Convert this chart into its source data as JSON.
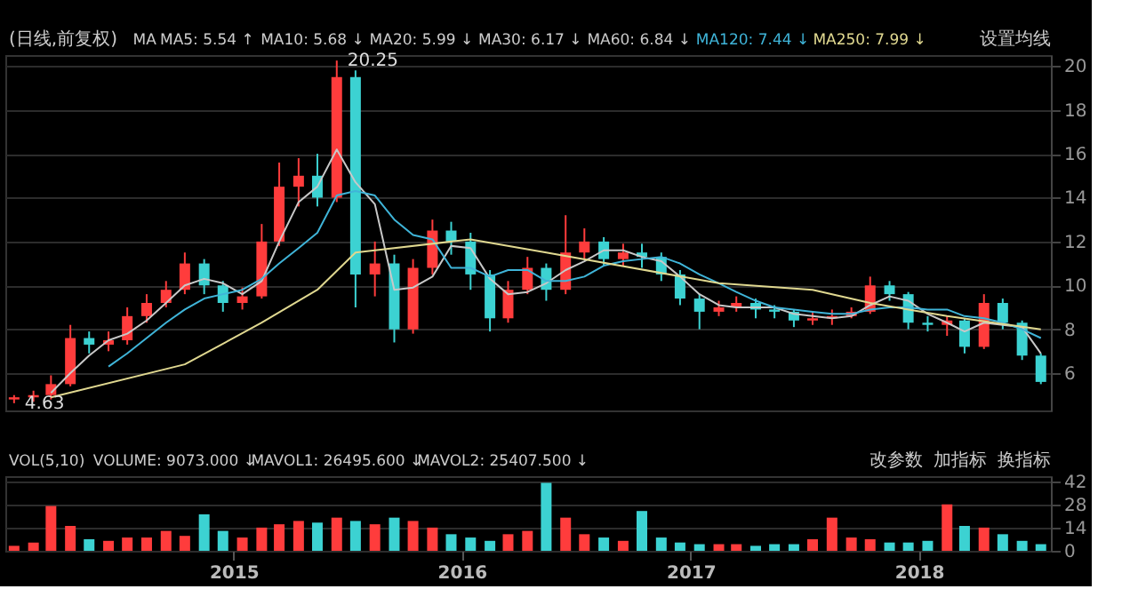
{
  "chart_data": [
    {
      "type": "candlestick",
      "x": [
        "2014-01-15",
        "2014-02-15",
        "2014-03-15",
        "2014-04-15",
        "2014-05-15",
        "2014-06-15",
        "2014-07-15",
        "2014-08-15",
        "2014-09-15",
        "2014-10-15",
        "2014-11-15",
        "2014-12-15",
        "2015-01-15",
        "2015-02-15",
        "2015-03-15",
        "2015-04-15",
        "2015-05-15",
        "2015-06-15",
        "2015-07-15",
        "2015-08-15",
        "2015-09-15",
        "2015-10-15",
        "2015-11-15",
        "2015-12-15",
        "2016-01-15",
        "2016-02-15",
        "2016-03-15",
        "2016-04-15",
        "2016-05-15",
        "2016-06-15",
        "2016-07-15",
        "2016-08-15",
        "2016-09-15",
        "2016-10-15",
        "2016-11-15",
        "2016-12-15",
        "2017-01-15",
        "2017-02-15",
        "2017-03-15",
        "2017-04-15",
        "2017-05-15",
        "2017-06-15",
        "2017-07-15",
        "2017-08-15",
        "2017-09-15",
        "2017-10-15",
        "2017-11-15",
        "2017-12-15",
        "2018-01-15",
        "2018-02-15",
        "2018-03-15",
        "2018-04-15",
        "2018-05-15",
        "2018-06-15",
        "2018-07-15"
      ],
      "ohlc": [
        [
          4.8,
          5.0,
          4.63,
          4.9
        ],
        [
          4.9,
          5.2,
          4.7,
          5.0
        ],
        [
          5.0,
          5.9,
          4.8,
          5.5
        ],
        [
          5.5,
          8.2,
          5.4,
          7.6
        ],
        [
          7.6,
          7.9,
          6.9,
          7.3
        ],
        [
          7.3,
          7.9,
          7.0,
          7.5
        ],
        [
          7.5,
          9.0,
          7.3,
          8.6
        ],
        [
          8.6,
          9.6,
          8.3,
          9.2
        ],
        [
          9.2,
          10.2,
          9.0,
          9.8
        ],
        [
          9.8,
          11.5,
          9.6,
          11.0
        ],
        [
          11.0,
          11.2,
          9.6,
          10.0
        ],
        [
          10.0,
          10.2,
          8.8,
          9.2
        ],
        [
          9.2,
          9.9,
          8.9,
          9.5
        ],
        [
          9.5,
          12.8,
          9.4,
          12.0
        ],
        [
          12.0,
          15.6,
          11.8,
          14.5
        ],
        [
          14.5,
          15.8,
          13.6,
          15.0
        ],
        [
          15.0,
          16.0,
          13.6,
          14.0
        ],
        [
          14.0,
          20.25,
          13.8,
          19.5
        ],
        [
          19.5,
          19.8,
          9.0,
          10.5
        ],
        [
          10.5,
          12.0,
          9.5,
          11.0
        ],
        [
          11.0,
          11.4,
          7.4,
          8.0
        ],
        [
          8.0,
          11.2,
          7.8,
          10.8
        ],
        [
          10.8,
          13.0,
          10.5,
          12.5
        ],
        [
          12.5,
          12.9,
          11.4,
          12.0
        ],
        [
          12.0,
          12.4,
          9.8,
          10.5
        ],
        [
          10.5,
          10.7,
          7.9,
          8.5
        ],
        [
          8.5,
          10.2,
          8.3,
          9.8
        ],
        [
          9.8,
          11.3,
          9.6,
          10.8
        ],
        [
          10.8,
          11.0,
          9.3,
          9.8
        ],
        [
          9.8,
          13.2,
          9.6,
          11.5
        ],
        [
          11.5,
          12.6,
          11.2,
          12.0
        ],
        [
          12.0,
          12.2,
          10.9,
          11.2
        ],
        [
          11.2,
          11.9,
          10.9,
          11.5
        ],
        [
          11.5,
          11.9,
          10.8,
          11.3
        ],
        [
          11.3,
          11.5,
          10.2,
          10.5
        ],
        [
          10.5,
          10.7,
          9.1,
          9.4
        ],
        [
          9.4,
          9.6,
          8.0,
          8.8
        ],
        [
          8.8,
          9.3,
          8.6,
          9.0
        ],
        [
          9.0,
          9.5,
          8.8,
          9.2
        ],
        [
          9.2,
          9.4,
          8.5,
          8.9
        ],
        [
          8.9,
          9.1,
          8.5,
          8.8
        ],
        [
          8.8,
          8.9,
          8.1,
          8.4
        ],
        [
          8.4,
          8.8,
          8.2,
          8.5
        ],
        [
          8.5,
          8.9,
          8.2,
          8.6
        ],
        [
          8.6,
          9.0,
          8.5,
          8.8
        ],
        [
          8.8,
          10.4,
          8.7,
          10.0
        ],
        [
          10.0,
          10.2,
          9.3,
          9.6
        ],
        [
          9.6,
          9.7,
          8.0,
          8.3
        ],
        [
          8.3,
          8.6,
          7.9,
          8.2
        ],
        [
          8.2,
          8.6,
          7.7,
          8.4
        ],
        [
          8.4,
          8.5,
          6.9,
          7.2
        ],
        [
          7.2,
          9.6,
          7.1,
          9.2
        ],
        [
          9.2,
          9.4,
          8.0,
          8.3
        ],
        [
          8.3,
          8.4,
          6.6,
          6.8
        ],
        [
          6.8,
          6.9,
          5.5,
          5.6
        ]
      ],
      "colors": [
        "#ff3c3c",
        "#ff3c3c",
        "#ff3c3c",
        "#ff3c3c",
        "#3cd2d2",
        "#ff3c3c",
        "#ff3c3c",
        "#ff3c3c",
        "#ff3c3c",
        "#ff3c3c",
        "#3cd2d2",
        "#3cd2d2",
        "#ff3c3c",
        "#ff3c3c",
        "#ff3c3c",
        "#ff3c3c",
        "#3cd2d2",
        "#ff3c3c",
        "#3cd2d2",
        "#ff3c3c",
        "#3cd2d2",
        "#ff3c3c",
        "#ff3c3c",
        "#3cd2d2",
        "#3cd2d2",
        "#3cd2d2",
        "#ff3c3c",
        "#ff3c3c",
        "#3cd2d2",
        "#ff3c3c",
        "#ff3c3c",
        "#3cd2d2",
        "#ff3c3c",
        "#3cd2d2",
        "#3cd2d2",
        "#3cd2d2",
        "#3cd2d2",
        "#ff3c3c",
        "#ff3c3c",
        "#3cd2d2",
        "#3cd2d2",
        "#3cd2d2",
        "#ff3c3c",
        "#ff3c3c",
        "#ff3c3c",
        "#ff3c3c",
        "#3cd2d2",
        "#3cd2d2",
        "#3cd2d2",
        "#ff3c3c",
        "#3cd2d2",
        "#ff3c3c",
        "#3cd2d2",
        "#3cd2d2",
        "#3cd2d2"
      ],
      "series": [
        {
          "type": "line",
          "name": "MA60: 6.84 ↓",
          "color": "#c8c8c8",
          "x": [
            "2014-03-15",
            "2014-04-15",
            "2014-05-15",
            "2014-06-15",
            "2014-07-15",
            "2014-08-15",
            "2014-09-15",
            "2014-10-15",
            "2014-11-15",
            "2014-12-15",
            "2015-01-15",
            "2015-02-15",
            "2015-03-15",
            "2015-04-15",
            "2015-05-15",
            "2015-06-15",
            "2015-07-15",
            "2015-08-15",
            "2015-09-15",
            "2015-10-15",
            "2015-11-15",
            "2015-12-15",
            "2016-01-15",
            "2016-02-15",
            "2016-03-15",
            "2016-04-15",
            "2016-05-15",
            "2016-06-15",
            "2016-07-15",
            "2016-08-15",
            "2016-09-15",
            "2016-10-15",
            "2016-11-15",
            "2016-12-15",
            "2017-01-15",
            "2017-02-15",
            "2017-03-15",
            "2017-04-15",
            "2017-05-15",
            "2017-06-15",
            "2017-07-15",
            "2017-08-15",
            "2017-09-15",
            "2017-10-15",
            "2017-11-15",
            "2017-12-15",
            "2018-01-15",
            "2018-02-15",
            "2018-03-15",
            "2018-04-15",
            "2018-05-15",
            "2018-06-15",
            "2018-07-15"
          ],
          "values": [
            5.1,
            6.0,
            6.8,
            7.5,
            7.8,
            8.4,
            9.2,
            10.0,
            10.3,
            10.1,
            9.6,
            10.2,
            12.0,
            13.8,
            14.5,
            16.2,
            14.7,
            13.7,
            9.8,
            9.9,
            10.4,
            11.8,
            11.7,
            10.3,
            9.6,
            9.7,
            10.1,
            10.7,
            11.1,
            11.6,
            11.6,
            11.3,
            11.1,
            10.4,
            9.6,
            9.1,
            9.0,
            9.0,
            9.0,
            8.7,
            8.6,
            8.5,
            8.6,
            9.1,
            9.5,
            9.3,
            8.7,
            8.3,
            7.9,
            8.3,
            8.2,
            8.1,
            6.9
          ]
        },
        {
          "type": "line",
          "name": "MA120: 7.44 ↓",
          "color": "#3fb4d8",
          "x": [
            "2014-06-15",
            "2014-07-15",
            "2014-08-15",
            "2014-09-15",
            "2014-10-15",
            "2014-11-15",
            "2014-12-15",
            "2015-01-15",
            "2015-02-15",
            "2015-03-15",
            "2015-04-15",
            "2015-05-15",
            "2015-06-15",
            "2015-07-15",
            "2015-08-15",
            "2015-09-15",
            "2015-10-15",
            "2015-11-15",
            "2015-12-15",
            "2016-01-15",
            "2016-02-15",
            "2016-03-15",
            "2016-04-15",
            "2016-05-15",
            "2016-06-15",
            "2016-07-15",
            "2016-08-15",
            "2016-09-15",
            "2016-10-15",
            "2016-11-15",
            "2016-12-15",
            "2017-01-15",
            "2017-02-15",
            "2017-03-15",
            "2017-04-15",
            "2017-05-15",
            "2017-06-15",
            "2017-07-15",
            "2017-08-15",
            "2017-09-15",
            "2017-10-15",
            "2017-11-15",
            "2017-12-15",
            "2018-01-15",
            "2018-02-15",
            "2018-03-15",
            "2018-04-15",
            "2018-05-15",
            "2018-06-15",
            "2018-07-15"
          ],
          "values": [
            6.3,
            6.9,
            7.6,
            8.3,
            8.9,
            9.4,
            9.6,
            9.8,
            10.3,
            11.0,
            11.7,
            12.4,
            14.1,
            14.3,
            14.1,
            13.0,
            12.3,
            12.1,
            10.8,
            10.8,
            10.4,
            10.7,
            10.7,
            10.2,
            10.2,
            10.4,
            10.9,
            11.1,
            11.2,
            11.3,
            11.0,
            10.5,
            10.1,
            9.7,
            9.3,
            9.0,
            8.9,
            8.8,
            8.7,
            8.7,
            8.9,
            9.0,
            9.0,
            8.9,
            8.9,
            8.6,
            8.5,
            8.3,
            8.0,
            7.6
          ]
        },
        {
          "type": "line",
          "name": "MA250: 7.99 ↓",
          "color": "#e0d890",
          "x": [
            "2014-03-15",
            "2014-10-15",
            "2015-02-15",
            "2015-05-15",
            "2015-07-15",
            "2015-08-15",
            "2016-01-15",
            "2016-05-15",
            "2017-02-15",
            "2017-07-15",
            "2017-10-15",
            "2018-02-15",
            "2018-07-15"
          ],
          "values": [
            4.9,
            6.4,
            8.3,
            9.8,
            11.5,
            11.6,
            12.1,
            11.5,
            10.1,
            9.8,
            9.2,
            8.6,
            8.0
          ]
        }
      ],
      "xlim": [
        "2014-01-01",
        "2018-07-31"
      ],
      "ylim": [
        4.3,
        20.5
      ],
      "yticks": [
        6,
        8,
        10,
        12,
        14,
        16,
        18,
        20
      ],
      "tick_labels": "y",
      "grid": "y",
      "annotations": [
        "(日线,前复权)",
        "MA",
        "MA5: 5.54 ↑",
        "MA10: 5.68 ↓",
        "MA20: 5.99 ↓",
        "MA30: 6.17 ↓",
        "设置均线",
        {
          "text": "20.25",
          "x": "2015-06-15",
          "y": 20.25
        },
        {
          "text": "4.63",
          "x": "2014-01-15",
          "y": 4.63
        }
      ]
    },
    {
      "type": "bar",
      "x": [
        "2014-01-15",
        "2014-02-15",
        "2014-03-15",
        "2014-04-15",
        "2014-05-15",
        "2014-06-15",
        "2014-07-15",
        "2014-08-15",
        "2014-09-15",
        "2014-10-15",
        "2014-11-15",
        "2014-12-15",
        "2015-01-15",
        "2015-02-15",
        "2015-03-15",
        "2015-04-15",
        "2015-05-15",
        "2015-06-15",
        "2015-07-15",
        "2015-08-15",
        "2015-09-15",
        "2015-10-15",
        "2015-11-15",
        "2015-12-15",
        "2016-01-15",
        "2016-02-15",
        "2016-03-15",
        "2016-04-15",
        "2016-05-15",
        "2016-06-15",
        "2016-07-15",
        "2016-08-15",
        "2016-09-15",
        "2016-10-15",
        "2016-11-15",
        "2016-12-15",
        "2017-01-15",
        "2017-02-15",
        "2017-03-15",
        "2017-04-15",
        "2017-05-15",
        "2017-06-15",
        "2017-07-15",
        "2017-08-15",
        "2017-09-15",
        "2017-10-15",
        "2017-11-15",
        "2017-12-15",
        "2018-01-15",
        "2018-02-15",
        "2018-03-15",
        "2018-04-15",
        "2018-05-15",
        "2018-06-15",
        "2018-07-15"
      ],
      "values": [
        3,
        5,
        27,
        15,
        7,
        6,
        8,
        8,
        12,
        9,
        22,
        12,
        8,
        14,
        16,
        18,
        17,
        20,
        18,
        16,
        20,
        18,
        14,
        10,
        8,
        6,
        10,
        12,
        41,
        20,
        10,
        8,
        6,
        24,
        8,
        5,
        4,
        4,
        4,
        3,
        4,
        4,
        7,
        20,
        8,
        7,
        5,
        5,
        6,
        28,
        15,
        14,
        10,
        6,
        4
      ],
      "colors": [
        "#ff3c3c",
        "#ff3c3c",
        "#ff3c3c",
        "#ff3c3c",
        "#3cd2d2",
        "#ff3c3c",
        "#ff3c3c",
        "#ff3c3c",
        "#ff3c3c",
        "#ff3c3c",
        "#3cd2d2",
        "#3cd2d2",
        "#ff3c3c",
        "#ff3c3c",
        "#ff3c3c",
        "#ff3c3c",
        "#3cd2d2",
        "#ff3c3c",
        "#3cd2d2",
        "#ff3c3c",
        "#3cd2d2",
        "#ff3c3c",
        "#ff3c3c",
        "#3cd2d2",
        "#3cd2d2",
        "#3cd2d2",
        "#ff3c3c",
        "#ff3c3c",
        "#3cd2d2",
        "#ff3c3c",
        "#ff3c3c",
        "#3cd2d2",
        "#ff3c3c",
        "#3cd2d2",
        "#3cd2d2",
        "#3cd2d2",
        "#3cd2d2",
        "#ff3c3c",
        "#ff3c3c",
        "#3cd2d2",
        "#3cd2d2",
        "#3cd2d2",
        "#ff3c3c",
        "#ff3c3c",
        "#ff3c3c",
        "#ff3c3c",
        "#3cd2d2",
        "#3cd2d2",
        "#3cd2d2",
        "#ff3c3c",
        "#3cd2d2",
        "#ff3c3c",
        "#3cd2d2",
        "#3cd2d2",
        "#3cd2d2"
      ],
      "xlim": [
        "2014-01-01",
        "2018-07-31"
      ],
      "xticks": [
        {
          "value": "2015-01-01",
          "label": "2015"
        },
        {
          "value": "2016-01-01",
          "label": "2016"
        },
        {
          "value": "2017-01-01",
          "label": "2017"
        },
        {
          "value": "2018-01-01",
          "label": "2018"
        }
      ],
      "ylim": [
        0,
        45
      ],
      "yticks": [
        0,
        14,
        28,
        42
      ],
      "grid": "y",
      "annotations": [
        "VOL(5,10)",
        "VOLUME: 9073.000 ↓",
        "MAVOL1: 26495.600 ↓",
        "MAVOL2: 25407.500 ↓",
        "改参数",
        "加指标",
        "换指标"
      ]
    }
  ]
}
